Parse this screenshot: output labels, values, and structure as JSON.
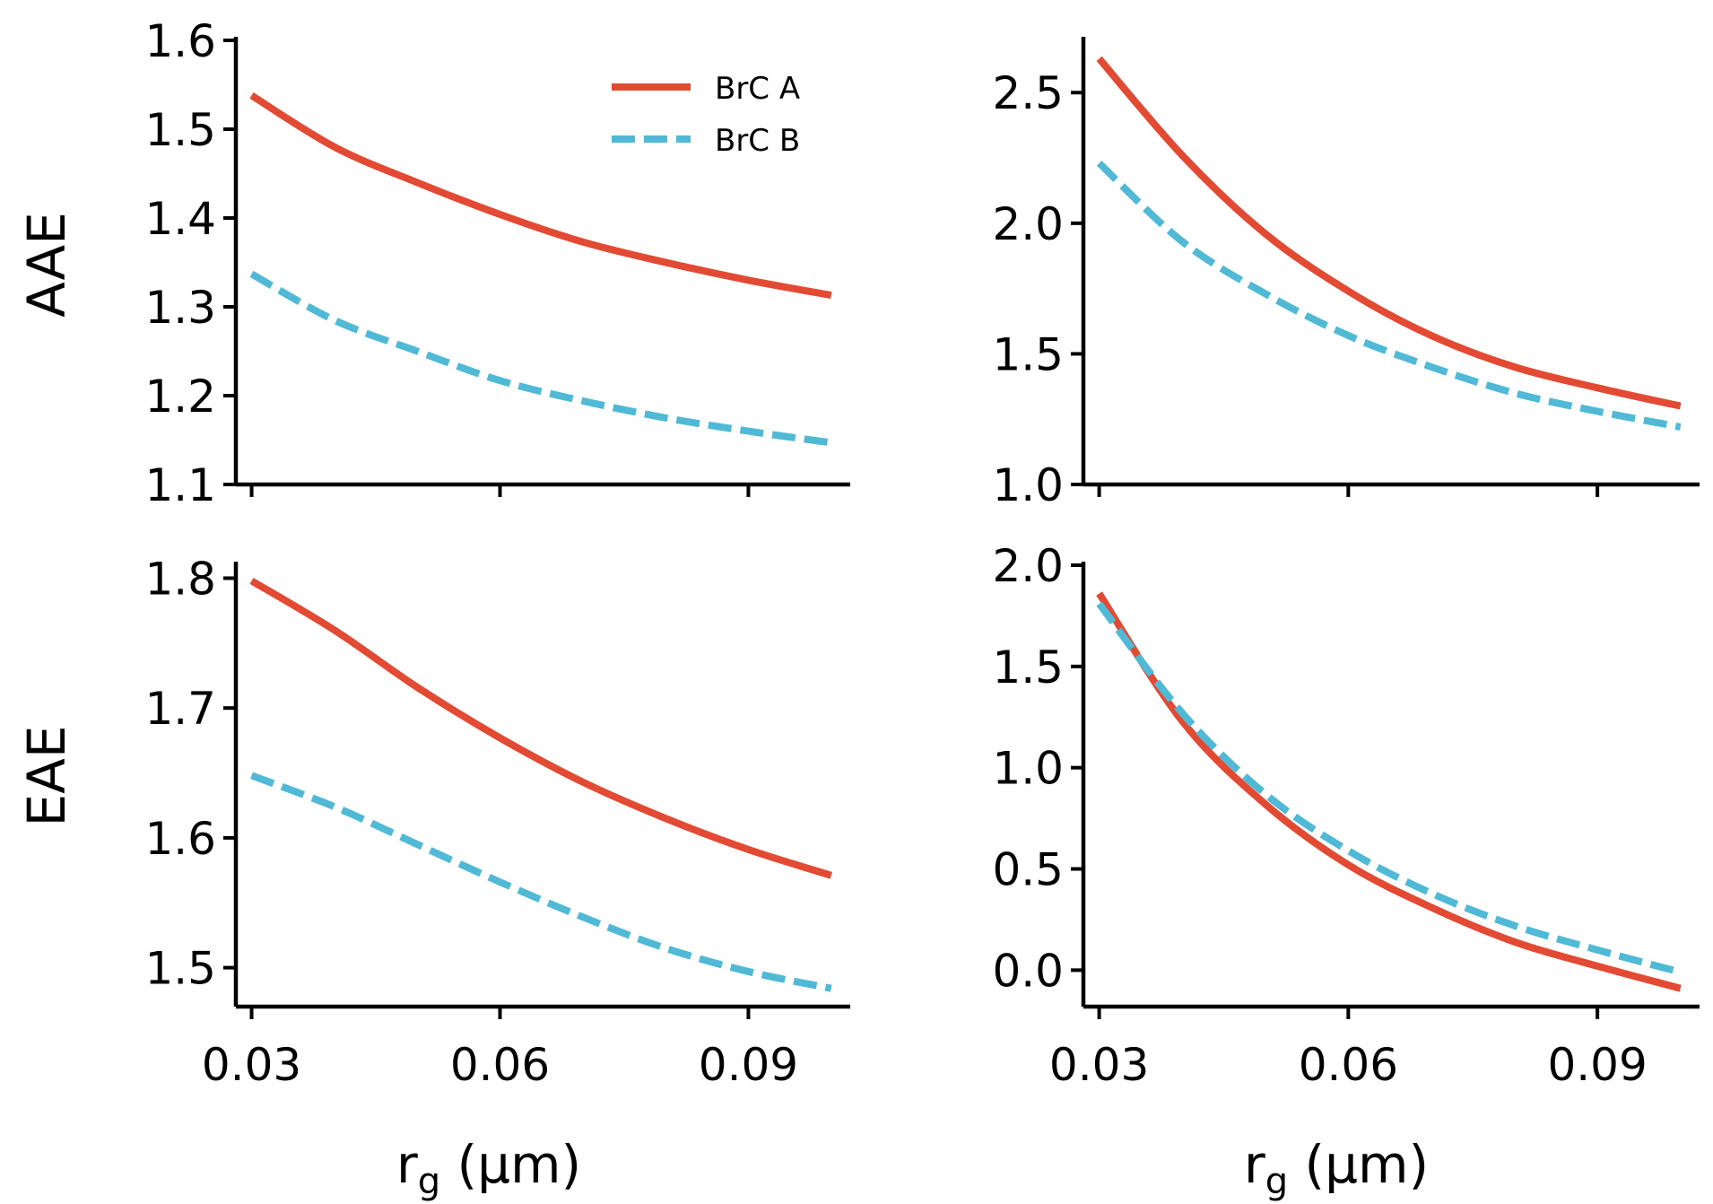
{
  "chart_data": [
    {
      "type": "line",
      "title": "",
      "ylabel": "AAE",
      "xlabel": "",
      "xlim": [
        0.0281,
        0.1023
      ],
      "ylim": [
        1.1,
        1.6
      ],
      "xticks": [
        0.03,
        0.06,
        0.09
      ],
      "xtick_labels": [],
      "yticks": [
        1.1,
        1.2,
        1.3,
        1.4,
        1.5,
        1.6
      ],
      "ytick_labels": [
        "1.1",
        "1.2",
        "1.3",
        "1.4",
        "1.5",
        "1.6"
      ],
      "legend": {
        "position": "top-right"
      },
      "series": [
        {
          "name": "BrC A",
          "style": "solid",
          "color": "#e34a33",
          "x": [
            0.03,
            0.04,
            0.05,
            0.06,
            0.07,
            0.08,
            0.09,
            0.1
          ],
          "y": [
            1.538,
            1.48,
            1.44,
            1.404,
            1.373,
            1.35,
            1.33,
            1.313
          ]
        },
        {
          "name": "BrC B",
          "style": "dashed",
          "color": "#4fb9d6",
          "x": [
            0.03,
            0.04,
            0.05,
            0.06,
            0.07,
            0.08,
            0.09,
            0.1
          ],
          "y": [
            1.337,
            1.285,
            1.25,
            1.217,
            1.194,
            1.175,
            1.16,
            1.147
          ]
        }
      ]
    },
    {
      "type": "line",
      "title": "",
      "ylabel": "",
      "xlabel": "",
      "xlim": [
        0.0281,
        0.1023
      ],
      "ylim": [
        1.0,
        2.7
      ],
      "xticks": [
        0.03,
        0.06,
        0.09
      ],
      "xtick_labels": [],
      "yticks": [
        1.0,
        1.5,
        2.0,
        2.5
      ],
      "ytick_labels": [
        "1.0",
        "1.5",
        "2.0",
        "2.5"
      ],
      "series": [
        {
          "name": "BrC A",
          "style": "solid",
          "color": "#e34a33",
          "x": [
            0.03,
            0.04,
            0.05,
            0.06,
            0.07,
            0.08,
            0.09,
            0.1
          ],
          "y": [
            2.63,
            2.26,
            1.96,
            1.74,
            1.57,
            1.45,
            1.37,
            1.3
          ]
        },
        {
          "name": "BrC B",
          "style": "dashed",
          "color": "#4fb9d6",
          "x": [
            0.03,
            0.04,
            0.05,
            0.06,
            0.07,
            0.08,
            0.09,
            0.1
          ],
          "y": [
            2.23,
            1.93,
            1.73,
            1.57,
            1.45,
            1.35,
            1.28,
            1.22
          ]
        }
      ]
    },
    {
      "type": "line",
      "title": "",
      "ylabel": "EAE",
      "xlabel": "r_g (μm)",
      "xlim": [
        0.0281,
        0.1023
      ],
      "ylim": [
        1.47,
        1.81
      ],
      "xticks": [
        0.03,
        0.06,
        0.09
      ],
      "xtick_labels": [
        "0.03",
        "0.06",
        "0.09"
      ],
      "yticks": [
        1.5,
        1.6,
        1.7,
        1.8
      ],
      "ytick_labels": [
        "1.5",
        "1.6",
        "1.7",
        "1.8"
      ],
      "series": [
        {
          "name": "BrC A",
          "style": "solid",
          "color": "#e34a33",
          "x": [
            0.03,
            0.04,
            0.05,
            0.06,
            0.07,
            0.08,
            0.09,
            0.1
          ],
          "y": [
            1.798,
            1.76,
            1.716,
            1.677,
            1.643,
            1.615,
            1.591,
            1.571
          ]
        },
        {
          "name": "BrC B",
          "style": "dashed",
          "color": "#4fb9d6",
          "x": [
            0.03,
            0.04,
            0.05,
            0.06,
            0.07,
            0.08,
            0.09,
            0.1
          ],
          "y": [
            1.648,
            1.624,
            1.595,
            1.566,
            1.539,
            1.515,
            1.497,
            1.484
          ]
        }
      ]
    },
    {
      "type": "line",
      "title": "",
      "ylabel": "",
      "xlabel": "r_g (μm)",
      "xlim": [
        0.0281,
        0.1023
      ],
      "ylim": [
        -0.18,
        2.0
      ],
      "xticks": [
        0.03,
        0.06,
        0.09
      ],
      "xtick_labels": [
        "0.03",
        "0.06",
        "0.09"
      ],
      "yticks": [
        0.0,
        0.5,
        1.0,
        1.5,
        2.0
      ],
      "ytick_labels": [
        "0.0",
        "0.5",
        "1.0",
        "1.5",
        "2.0"
      ],
      "series": [
        {
          "name": "BrC A",
          "style": "solid",
          "color": "#e34a33",
          "x": [
            0.03,
            0.04,
            0.05,
            0.06,
            0.07,
            0.08,
            0.09,
            0.1
          ],
          "y": [
            1.86,
            1.23,
            0.82,
            0.52,
            0.31,
            0.14,
            0.02,
            -0.09
          ]
        },
        {
          "name": "BrC B",
          "style": "dashed",
          "color": "#4fb9d6",
          "x": [
            0.03,
            0.04,
            0.05,
            0.06,
            0.07,
            0.08,
            0.09,
            0.1
          ],
          "y": [
            1.81,
            1.27,
            0.87,
            0.59,
            0.38,
            0.22,
            0.1,
            -0.01
          ]
        }
      ]
    }
  ],
  "axis_labels": {
    "row1_ylabel": "AAE",
    "row2_ylabel": "EAE",
    "xlabel_left": "r",
    "xlabel_left_sub": "g",
    "xlabel_left_unit": " (μm)",
    "xlabel_right": "r",
    "xlabel_right_sub": "g",
    "xlabel_right_unit": " (μm)"
  },
  "legend": {
    "items": [
      {
        "label": "BrC A",
        "color": "#e34a33",
        "style": "solid"
      },
      {
        "label": "BrC B",
        "color": "#4fb9d6",
        "style": "dashed"
      }
    ]
  }
}
